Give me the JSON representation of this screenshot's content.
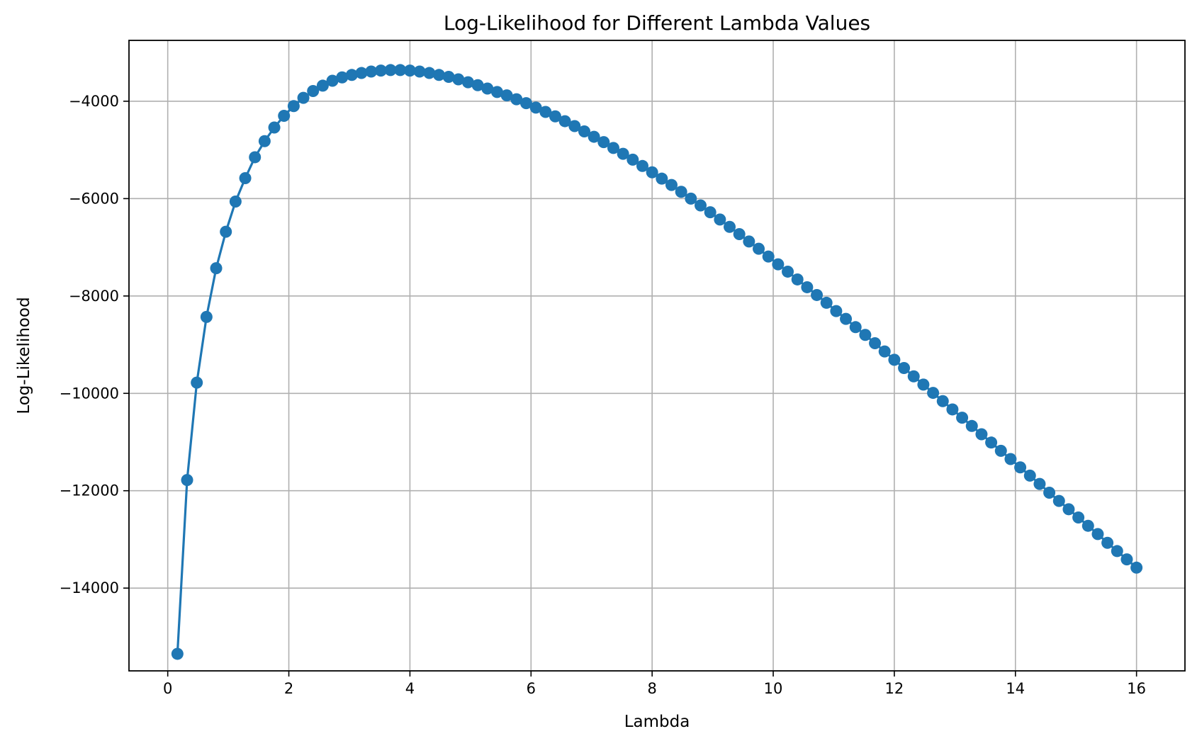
{
  "chart_data": {
    "type": "line",
    "title": "Log-Likelihood for Different Lambda Values",
    "xlabel": "Lambda",
    "ylabel": "Log-Likelihood",
    "xlim": [
      -0.64,
      16.8
    ],
    "ylim": [
      -15700,
      -2750
    ],
    "xticks": [
      0,
      2,
      4,
      6,
      8,
      10,
      12,
      14,
      16
    ],
    "yticks": [
      -14000,
      -12000,
      -10000,
      -8000,
      -6000,
      -4000
    ],
    "grid": true,
    "marker": "circle",
    "series_color": "#1f77b4",
    "series": [
      {
        "x": [
          0.16,
          0.32,
          0.48,
          0.64,
          0.8,
          0.96,
          1.12,
          1.28,
          1.44,
          1.6,
          1.76,
          1.92,
          2.08,
          2.24,
          2.4,
          2.56,
          2.72,
          2.88,
          3.04,
          3.2,
          3.36,
          3.52,
          3.68,
          3.84,
          4.0,
          4.16,
          4.32,
          4.48,
          4.64,
          4.8,
          4.96,
          5.12,
          5.28,
          5.44,
          5.6,
          5.76,
          5.92,
          6.08,
          6.24,
          6.4,
          6.56,
          6.72,
          6.88,
          7.04,
          7.2,
          7.36,
          7.52,
          7.68,
          7.84,
          8.0,
          8.16,
          8.32,
          8.48,
          8.64,
          8.8,
          8.96,
          9.12,
          9.28,
          9.44,
          9.6,
          9.76,
          9.92,
          10.08,
          10.24,
          10.4,
          10.56,
          10.72,
          10.88,
          11.04,
          11.2,
          11.36,
          11.52,
          11.68,
          11.84,
          12.0,
          12.16,
          12.32,
          12.48,
          12.64,
          12.8,
          12.96,
          13.12,
          13.28,
          13.44,
          13.6,
          13.76,
          13.92,
          14.08,
          14.24,
          14.4,
          14.56,
          14.72,
          14.88,
          15.04,
          15.2,
          15.36,
          15.52,
          15.68,
          15.84,
          16.0
        ],
        "y": [
          -15350,
          -11780,
          -9780,
          -8430,
          -7430,
          -6680,
          -6060,
          -5580,
          -5150,
          -4820,
          -4540,
          -4300,
          -4100,
          -3930,
          -3790,
          -3680,
          -3580,
          -3510,
          -3460,
          -3420,
          -3390,
          -3370,
          -3360,
          -3360,
          -3370,
          -3390,
          -3420,
          -3460,
          -3500,
          -3550,
          -3610,
          -3670,
          -3740,
          -3810,
          -3880,
          -3960,
          -4040,
          -4130,
          -4220,
          -4310,
          -4410,
          -4510,
          -4620,
          -4730,
          -4840,
          -4960,
          -5080,
          -5200,
          -5330,
          -5460,
          -5590,
          -5720,
          -5860,
          -6000,
          -6140,
          -6280,
          -6430,
          -6580,
          -6730,
          -6880,
          -7030,
          -7190,
          -7350,
          -7500,
          -7660,
          -7820,
          -7980,
          -8140,
          -8310,
          -8470,
          -8640,
          -8800,
          -8970,
          -9140,
          -9310,
          -9480,
          -9650,
          -9820,
          -9990,
          -10160,
          -10330,
          -10500,
          -10670,
          -10840,
          -11010,
          -11180,
          -11350,
          -11520,
          -11690,
          -11860,
          -12040,
          -12210,
          -12380,
          -12550,
          -12720,
          -12890,
          -13070,
          -13240,
          -13410,
          -13580
        ]
      }
    ]
  }
}
